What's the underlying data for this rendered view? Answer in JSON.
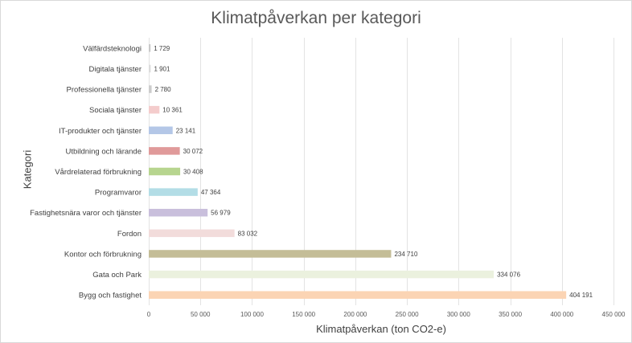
{
  "chart_data": {
    "type": "bar",
    "orientation": "horizontal",
    "title": "Klimatpåverkan per kategori",
    "xlabel": "Klimatpåverkan (ton CO2-e)",
    "ylabel": "Kategori",
    "xlim": [
      0,
      450000
    ],
    "xticks": [
      0,
      50000,
      100000,
      150000,
      200000,
      250000,
      300000,
      350000,
      400000,
      450000
    ],
    "xtick_labels": [
      "0",
      "50 000",
      "100 000",
      "150 000",
      "200 000",
      "250 000",
      "300 000",
      "350 000",
      "400 000",
      "450 000"
    ],
    "grid": true,
    "legend": "none",
    "categories": [
      "Välfärdsteknologi",
      "Digitala tjänster",
      "Professionella tjänster",
      "Sociala tjänster",
      "IT-produkter och tjänster",
      "Utbildning och lärande",
      "Vårdrelaterad förbrukning",
      "Programvaror",
      "Fastighetsnära varor och tjänster",
      "Fordon",
      "Kontor och förbrukning",
      "Gata och Park",
      "Bygg och fastighet"
    ],
    "values": [
      1729,
      1901,
      2780,
      10361,
      23141,
      30072,
      30408,
      47364,
      56979,
      83032,
      234710,
      334076,
      404191
    ],
    "value_labels": [
      "1 729",
      "1 901",
      "2 780",
      "10 361",
      "23 141",
      "30 072",
      "30 408",
      "47 364",
      "56 979",
      "83 032",
      "234 710",
      "334 076",
      "404 191"
    ],
    "colors": [
      "#c9c9c9",
      "#dcdcdc",
      "#cccccc",
      "#f4cccc",
      "#b4c7e7",
      "#e09a9a",
      "#b7d58f",
      "#b3dde6",
      "#c9bfdc",
      "#f2dcdb",
      "#c4bd97",
      "#ebf1de",
      "#fbd4b4"
    ]
  }
}
